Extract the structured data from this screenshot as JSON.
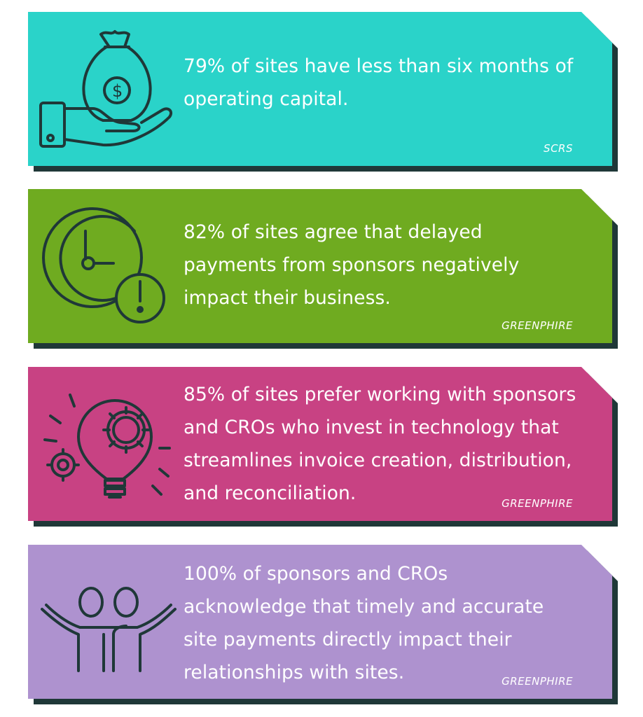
{
  "cards": [
    {
      "color": "#2ad3c9",
      "icon": "money-bag-hand-icon",
      "lines": [
        "79% of sites have less than six months of",
        "operating capital."
      ],
      "source": "SCRS"
    },
    {
      "color": "#6fab20",
      "icon": "clock-alert-icon",
      "lines": [
        "82% of sites agree that delayed",
        "payments from sponsors negatively",
        "impact their business."
      ],
      "source": "GREENPHIRE"
    },
    {
      "color": "#c84283",
      "icon": "lightbulb-gears-icon",
      "lines": [
        "85% of sites prefer working with sponsors",
        "and CROs who invest in technology that",
        "streamlines invoice creation, distribution,",
        "and reconciliation."
      ],
      "source": "GREENPHIRE"
    },
    {
      "color": "#ae92cf",
      "icon": "people-celebrating-icon",
      "lines": [
        "100% of sponsors and CROs",
        "acknowledge that timely and accurate",
        "site payments directly impact their",
        "relationships with sites."
      ],
      "source": "GREENPHIRE"
    }
  ]
}
